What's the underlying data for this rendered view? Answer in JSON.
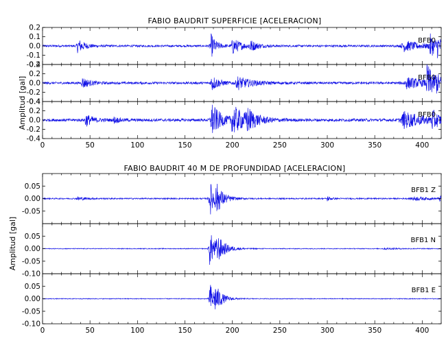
{
  "colors": {
    "trace": "#1010e6",
    "axis": "#000000",
    "background": "#ffffff"
  },
  "chart_data": [
    {
      "type": "line",
      "title": "FABIO BAUDRIT SUPERFICIE [ACELERACION]",
      "ylabel": "Amplitud [gal]",
      "xlim": [
        0,
        420
      ],
      "xticks": [
        "0",
        "50",
        "100",
        "150",
        "200",
        "250",
        "300",
        "350",
        "400"
      ],
      "series": [
        {
          "name": "BFB0",
          "ylim": [
            -0.2,
            0.2
          ],
          "yticks": [
            "0.2",
            "0.1",
            "0.0",
            "-0.1",
            "-0.2"
          ],
          "noise": 0.011,
          "bursts": [
            [
              37,
              4,
              0.08
            ],
            [
              177,
              3,
              0.14
            ],
            [
              200,
              5,
              0.09
            ],
            [
              218,
              4,
              0.06
            ],
            [
              380,
              10,
              0.06
            ],
            [
              408,
              4,
              0.12
            ],
            [
              416,
              3,
              0.08
            ]
          ]
        },
        {
          "name": "BFB0",
          "ylim": [
            -0.4,
            0.4
          ],
          "yticks": [
            "0.4",
            "0.2",
            "0.0",
            "-0.2",
            "-0.4"
          ],
          "noise": 0.025,
          "bursts": [
            [
              42,
              4,
              0.12
            ],
            [
              178,
              4,
              0.18
            ],
            [
              205,
              8,
              0.14
            ],
            [
              383,
              12,
              0.12
            ],
            [
              405,
              3,
              0.45
            ],
            [
              414,
              4,
              0.15
            ]
          ]
        },
        {
          "name": "BFB0",
          "ylim": [
            -0.4,
            0.4
          ],
          "yticks": [
            "0.4",
            "0.2",
            "0.0",
            "-0.2",
            "-0.4"
          ],
          "noise": 0.03,
          "bursts": [
            [
              45,
              4,
              0.14
            ],
            [
              75,
              3,
              0.06
            ],
            [
              178,
              5,
              0.38
            ],
            [
              200,
              8,
              0.3
            ],
            [
              215,
              5,
              0.2
            ],
            [
              380,
              12,
              0.18
            ],
            [
              410,
              4,
              0.2
            ]
          ]
        }
      ]
    },
    {
      "type": "line",
      "title": "FABIO BAUDRIT 40 M DE PROFUNDIDAD [ACELERACION]",
      "ylabel": "Amplitud [gal]",
      "xlim": [
        0,
        420
      ],
      "xticks": [
        "0",
        "50",
        "100",
        "150",
        "200",
        "250",
        "300",
        "350",
        "400"
      ],
      "series": [
        {
          "name": "BFB1 Z",
          "ylim": [
            -0.1,
            0.1
          ],
          "yticks": [
            "0.05",
            "0.00",
            "-0.05"
          ],
          "noise": 0.0025,
          "bursts": [
            [
              37,
              5,
              0.007
            ],
            [
              176,
              4,
              0.07
            ],
            [
              183,
              4,
              0.04
            ],
            [
              300,
              2,
              0.01
            ],
            [
              390,
              10,
              0.007
            ],
            [
              418,
              2,
              0.01
            ]
          ]
        },
        {
          "name": "BFB1 N",
          "ylim": [
            -0.1,
            0.1
          ],
          "yticks": [
            "0.05",
            "0.00",
            "-0.05",
            "-0.10"
          ],
          "noise": 0.0015,
          "bursts": [
            [
              176,
              4,
              0.07
            ],
            [
              184,
              5,
              0.035
            ],
            [
              360,
              10,
              0.003
            ]
          ]
        },
        {
          "name": "BFB1 E",
          "ylim": [
            -0.1,
            0.1
          ],
          "yticks": [
            "0.05",
            "0.00",
            "-0.05",
            "-0.10"
          ],
          "noise": 0.0015,
          "bursts": [
            [
              176,
              3,
              0.07
            ],
            [
              182,
              4,
              0.04
            ]
          ]
        }
      ]
    }
  ]
}
